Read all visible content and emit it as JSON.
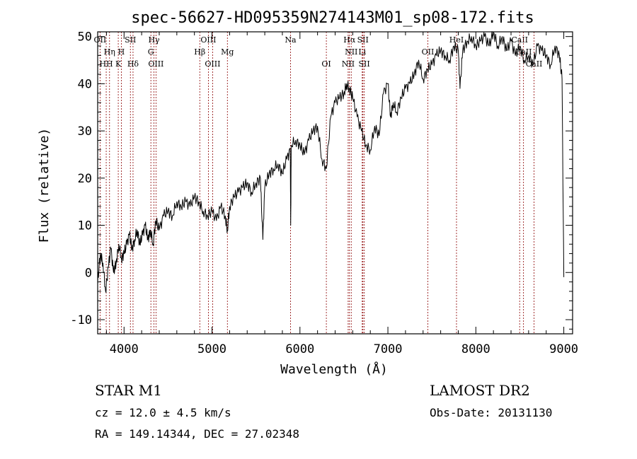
{
  "chart_data": {
    "type": "line",
    "title": "spec-56627-HD095359N274143M01_sp08-172.fits",
    "xlabel": "Wavelength (Å)",
    "ylabel": "Flux (relative)",
    "xlim": [
      3700,
      9100
    ],
    "ylim": [
      -13,
      51
    ],
    "xticks": [
      4000,
      5000,
      6000,
      7000,
      8000,
      9000
    ],
    "yticks": [
      -10,
      0,
      10,
      20,
      30,
      40,
      50
    ],
    "grid": false,
    "series": [
      {
        "x": [
          3700,
          3730,
          3760,
          3790,
          3820,
          3850,
          3880,
          3910,
          3940,
          3970,
          4000,
          4030,
          4060,
          4090,
          4120,
          4150,
          4180,
          4210,
          4240,
          4270,
          4300,
          4330,
          4360,
          4400,
          4450,
          4500,
          4550,
          4600,
          4650,
          4700,
          4750,
          4800,
          4850,
          4900,
          4950,
          5000,
          5050,
          5100,
          5150,
          5175,
          5200,
          5250,
          5300,
          5350,
          5400,
          5450,
          5500,
          5550,
          5578,
          5600,
          5650,
          5700,
          5750,
          5800,
          5850,
          5890,
          5895,
          5900,
          5950,
          6000,
          6050,
          6100,
          6150,
          6200,
          6250,
          6300,
          6350,
          6400,
          6450,
          6500,
          6530,
          6563,
          6600,
          6650,
          6700,
          6750,
          6800,
          6850,
          6900,
          6950,
          7000,
          7030,
          7060,
          7100,
          7150,
          7200,
          7250,
          7300,
          7350,
          7400,
          7450,
          7500,
          7550,
          7600,
          7650,
          7700,
          7750,
          7800,
          7820,
          7850,
          7900,
          7950,
          8000,
          8050,
          8100,
          8150,
          8200,
          8250,
          8300,
          8350,
          8400,
          8450,
          8500,
          8550,
          8600,
          8650,
          8700,
          8750,
          8800,
          8850,
          8900,
          8950,
          8980,
          9000
        ],
        "y": [
          -2,
          4,
          2,
          -4,
          1,
          5,
          0,
          2,
          6,
          3,
          4,
          6,
          8,
          5,
          7,
          9,
          6,
          8,
          10,
          7,
          9,
          6,
          11,
          9,
          12,
          13,
          12,
          15,
          14,
          15,
          14,
          16,
          15,
          13,
          12,
          13,
          11,
          14,
          12,
          9,
          14,
          16,
          17,
          18,
          19,
          17,
          19,
          20,
          7,
          18,
          21,
          22,
          23,
          21,
          24,
          26,
          10,
          27,
          28,
          27,
          25,
          28,
          30,
          31,
          24,
          22,
          33,
          36,
          37,
          38,
          40,
          39,
          37,
          33,
          30,
          27,
          26,
          31,
          29,
          38,
          40,
          33,
          36,
          34,
          37,
          39,
          40,
          42,
          45,
          41,
          43,
          44,
          46,
          47,
          46,
          45,
          48,
          47,
          39,
          47,
          49,
          50,
          48,
          49,
          50,
          48,
          51,
          48,
          50,
          47,
          49,
          46,
          48,
          45,
          46,
          44,
          48,
          47,
          46,
          44,
          48,
          46,
          41,
          -1
        ]
      }
    ],
    "lines": [
      {
        "label": "OII",
        "x": 3727,
        "row": 1
      },
      {
        "label": "Hη",
        "x": 3835,
        "row": 2
      },
      {
        "label": "HH",
        "x": 3797,
        "row": 3
      },
      {
        "label": "K",
        "x": 3934,
        "row": 3
      },
      {
        "label": "H",
        "x": 3969,
        "row": 2
      },
      {
        "label": "SII",
        "x": 4072,
        "row": 1
      },
      {
        "label": "Hδ",
        "x": 4102,
        "row": 3
      },
      {
        "label": "Hγ",
        "x": 4340,
        "row": 1
      },
      {
        "label": "G",
        "x": 4305,
        "row": 2
      },
      {
        "label": "OIII",
        "x": 4363,
        "row": 3
      },
      {
        "label": "OIII",
        "x": 4959,
        "row": 1
      },
      {
        "label": "Hβ",
        "x": 4861,
        "row": 2
      },
      {
        "label": "OIII",
        "x": 5007,
        "row": 3
      },
      {
        "label": "Mg",
        "x": 5175,
        "row": 2
      },
      {
        "label": "Na",
        "x": 5893,
        "row": 1
      },
      {
        "label": "OI",
        "x": 6300,
        "row": 3
      },
      {
        "label": "Hα",
        "x": 6563,
        "row": 1
      },
      {
        "label": "NII",
        "x": 6583,
        "row": 2
      },
      {
        "label": "NII",
        "x": 6548,
        "row": 3
      },
      {
        "label": "SII",
        "x": 6716,
        "row": 1
      },
      {
        "label": "Li",
        "x": 6708,
        "row": 2
      },
      {
        "label": "SII",
        "x": 6731,
        "row": 3
      },
      {
        "label": "OII",
        "x": 7454,
        "row": 2
      },
      {
        "label": "HeI",
        "x": 7780,
        "row": 1
      },
      {
        "label": "CaII",
        "x": 8498,
        "row": 1
      },
      {
        "label": "CaII",
        "x": 8542,
        "row": 2
      },
      {
        "label": "CaII",
        "x": 8662,
        "row": 3
      }
    ]
  },
  "info": {
    "class_line": "STAR    M1",
    "cz_line": "cz = 12.0 ± 4.5 km/s",
    "radec_line": "RA = 149.14344, DEC =  27.02348",
    "survey": "LAMOST DR2",
    "obs_date": "Obs-Date: 20131130"
  }
}
